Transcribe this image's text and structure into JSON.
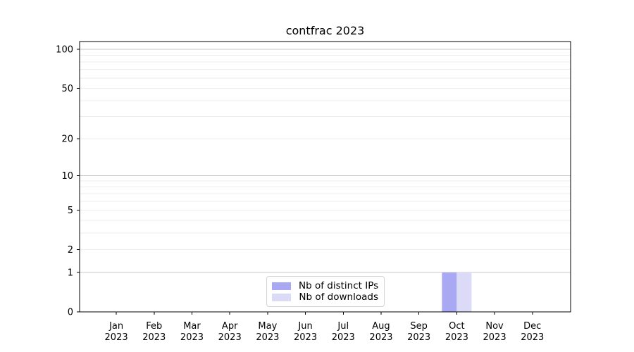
{
  "chart_data": {
    "type": "bar",
    "title": "contfrac 2023",
    "x": {
      "months": [
        "Jan",
        "Feb",
        "Mar",
        "Apr",
        "May",
        "Jun",
        "Jul",
        "Aug",
        "Sep",
        "Oct",
        "Nov",
        "Dec"
      ],
      "year": "2023"
    },
    "series": [
      {
        "name": "Nb of distinct IPs",
        "color": "#a9a9f3",
        "values": [
          0,
          0,
          0,
          0,
          0,
          0,
          0,
          0,
          0,
          1,
          0,
          0
        ]
      },
      {
        "name": "Nb of downloads",
        "color": "#dbdbf8",
        "values": [
          0,
          0,
          0,
          0,
          0,
          0,
          0,
          0,
          0,
          1,
          0,
          0
        ]
      }
    ],
    "yscale": "log1p",
    "ylim": [
      0,
      115
    ],
    "y_tick_labels": [
      0,
      1,
      2,
      5,
      10,
      20,
      50,
      100
    ],
    "grid": {
      "major_lines": [
        1,
        10,
        100
      ],
      "minor_lines": [
        2,
        3,
        4,
        5,
        6,
        7,
        8,
        9,
        20,
        30,
        40,
        50,
        60,
        70,
        80,
        90
      ],
      "major_color": "#c8c8c8",
      "minor_color": "#ededed"
    },
    "legend": {
      "location": "lower center"
    },
    "colors": {
      "spine": "#000000",
      "text": "#000000",
      "background": "#ffffff"
    }
  }
}
